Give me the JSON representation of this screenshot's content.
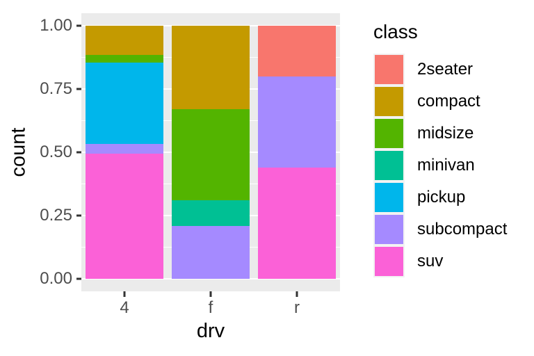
{
  "figure": {
    "background": "#FFFFFF",
    "panel_background": "#EBEBEB",
    "gridline_color": "#FFFFFF",
    "tick_mark_color": "#333333",
    "tick_label_color": "#4D4D4D",
    "title_color": "#000000"
  },
  "chart_data": {
    "type": "bar",
    "variant": "stacked-fill-proportion",
    "xlabel": "drv",
    "ylabel": "count",
    "categories": [
      "4",
      "f",
      "r"
    ],
    "y_ticks": [
      "0.00",
      "0.25",
      "0.50",
      "0.75",
      "1.00"
    ],
    "y_tick_values": [
      0,
      0.25,
      0.5,
      0.75,
      1.0
    ],
    "y_minor_values": [
      0.125,
      0.375,
      0.625,
      0.875
    ],
    "ylim": [
      0,
      1
    ],
    "grid": "white major and minor horizontal gridlines on grey panel",
    "legend_title": "class",
    "legend_position": "right",
    "stack_note": "series stacked top-to-bottom in listed order (2seater at top, suv at bottom)",
    "series": [
      {
        "name": "2seater",
        "color": "#F8766D",
        "values": [
          0,
          0,
          0.2
        ]
      },
      {
        "name": "compact",
        "color": "#C49A00",
        "values": [
          0.1165,
          0.3302,
          0
        ]
      },
      {
        "name": "midsize",
        "color": "#53B400",
        "values": [
          0.0291,
          0.3585,
          0
        ]
      },
      {
        "name": "minivan",
        "color": "#00C094",
        "values": [
          0,
          0.1038,
          0
        ]
      },
      {
        "name": "pickup",
        "color": "#00B6EB",
        "values": [
          0.3204,
          0,
          0
        ]
      },
      {
        "name": "subcompact",
        "color": "#A58AFF",
        "values": [
          0.0388,
          0.2075,
          0.36
        ]
      },
      {
        "name": "suv",
        "color": "#FB61D7",
        "values": [
          0.4951,
          0,
          0.44
        ]
      }
    ]
  }
}
